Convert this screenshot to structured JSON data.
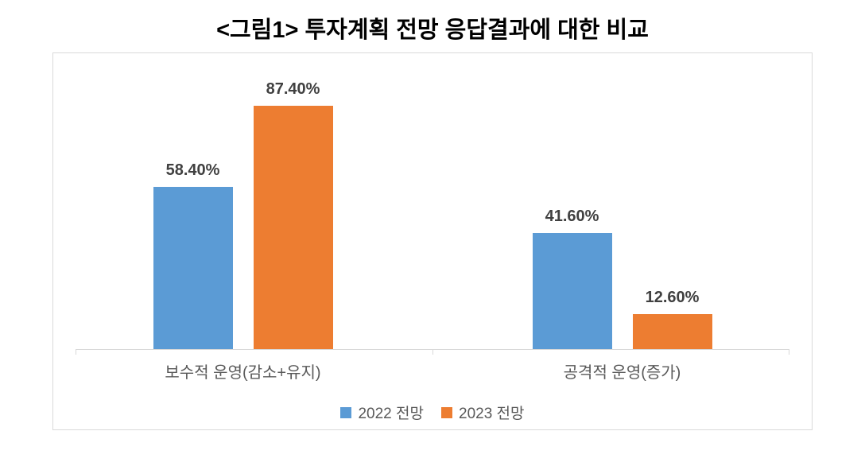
{
  "chart_data": {
    "type": "bar",
    "title": "<그림1> 투자계획 전망 응답결과에 대한 비교",
    "categories": [
      "보수적 운영(감소+유지)",
      "공격적 운영(증가)"
    ],
    "series": [
      {
        "name": "2022 전망",
        "color": "#5B9BD5",
        "values": [
          58.4,
          41.6
        ],
        "labels": [
          "58.40%",
          "41.60%"
        ]
      },
      {
        "name": "2023 전망",
        "color": "#ED7D31",
        "values": [
          87.4,
          12.6
        ],
        "labels": [
          "87.40%",
          "12.60%"
        ]
      }
    ],
    "xlabel": "",
    "ylabel": "",
    "ylim": [
      0,
      100
    ],
    "grid": false,
    "y_axis_visible": false,
    "legend_position": "bottom",
    "colors": {
      "series_2022": "#5B9BD5",
      "series_2023": "#ED7D31",
      "axis_line": "#d9d9d9",
      "data_label_text": "#404040",
      "category_text": "#595959",
      "frame_border": "#d9d9d9"
    }
  }
}
